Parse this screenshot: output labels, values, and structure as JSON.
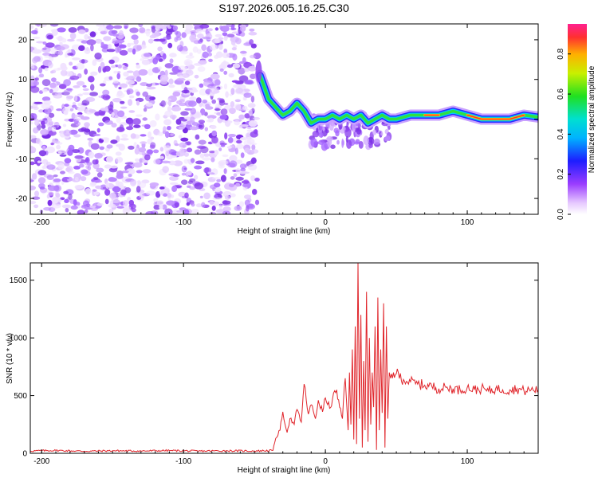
{
  "title": "S197.2026.005.16.25.C30",
  "colors": {
    "snr_line": "#e0252b",
    "frame": "#000000"
  },
  "chart_data": [
    {
      "type": "heatmap",
      "name": "spectrogram",
      "xlabel": "Height of straight line (km)",
      "ylabel": "Frequency (Hz)",
      "xlim": [
        -208,
        150
      ],
      "ylim": [
        -24,
        24
      ],
      "xticks": [
        -200,
        -100,
        0,
        100
      ],
      "xtick_labels": [
        "-200",
        "-100",
        "0",
        "100"
      ],
      "yticks": [
        -20,
        -10,
        0,
        10,
        20
      ],
      "ytick_labels": [
        "-20",
        "-10",
        "0",
        "10",
        "20"
      ],
      "noise_region_x": [
        -208,
        -48
      ],
      "dominant_frequency": {
        "x": [
          -46,
          -40,
          -35,
          -30,
          -25,
          -20,
          -15,
          -10,
          -5,
          0,
          5,
          10,
          15,
          20,
          25,
          30,
          35,
          40,
          45,
          50,
          60,
          70,
          80,
          90,
          100,
          110,
          120,
          130,
          140,
          150
        ],
        "y": [
          11,
          5,
          3,
          1,
          2,
          4,
          2,
          -1,
          0,
          0,
          1,
          0,
          1,
          0,
          1,
          -1,
          0,
          1,
          0,
          0,
          1,
          1,
          1,
          2,
          1,
          0,
          0,
          0,
          1,
          0.5
        ]
      },
      "colorbar": {
        "label": "Normalized spectral amplitude",
        "range": [
          0.0,
          0.95
        ],
        "ticks": [
          0.0,
          0.2,
          0.4,
          0.6,
          0.8
        ],
        "tick_labels": [
          "0.0",
          "0.2",
          "0.4",
          "0.6",
          "0.8"
        ]
      }
    },
    {
      "type": "line",
      "name": "snr",
      "xlabel": "Height of straight line (km)",
      "ylabel": "SNR (10 * v/v)",
      "xlim": [
        -208,
        150
      ],
      "ylim": [
        0,
        1650
      ],
      "xticks": [
        -200,
        -100,
        0,
        100
      ],
      "xtick_labels": [
        "-200",
        "-100",
        "0",
        "100"
      ],
      "yticks": [
        0,
        500,
        1000,
        1500
      ],
      "ytick_labels": [
        "0",
        "500",
        "1000",
        "1500"
      ],
      "series": [
        {
          "name": "SNR",
          "x": [
            -208,
            -190,
            -170,
            -150,
            -130,
            -110,
            -90,
            -70,
            -50,
            -37,
            -35,
            -32,
            -30,
            -27,
            -25,
            -22,
            -20,
            -17,
            -15,
            -12,
            -10,
            -7,
            -5,
            -2,
            0,
            3,
            5,
            8,
            10,
            12,
            14,
            16,
            17,
            18,
            19,
            20,
            21,
            22,
            23,
            24,
            25,
            26,
            27,
            28,
            29,
            30,
            31,
            32,
            33,
            34,
            35,
            36,
            37,
            38,
            39,
            40,
            41,
            42,
            43,
            44,
            45,
            46,
            48,
            50,
            55,
            60,
            65,
            70,
            75,
            80,
            85,
            90,
            95,
            100,
            105,
            110,
            115,
            120,
            125,
            130,
            135,
            140,
            145,
            150
          ],
          "y": [
            20,
            25,
            18,
            22,
            20,
            24,
            19,
            22,
            20,
            25,
            130,
            200,
            360,
            180,
            300,
            250,
            380,
            270,
            600,
            340,
            420,
            300,
            460,
            360,
            480,
            390,
            470,
            550,
            400,
            300,
            650,
            200,
            700,
            250,
            900,
            120,
            1100,
            80,
            1650,
            300,
            1200,
            50,
            800,
            200,
            1400,
            100,
            1000,
            250,
            700,
            400,
            1100,
            30,
            1350,
            200,
            900,
            350,
            1300,
            50,
            1100,
            300,
            700,
            650,
            700,
            690,
            640,
            620,
            600,
            590,
            580,
            560,
            570,
            560,
            550,
            570,
            550,
            560,
            540,
            560,
            550,
            550,
            560,
            540,
            550,
            550
          ]
        }
      ]
    }
  ]
}
